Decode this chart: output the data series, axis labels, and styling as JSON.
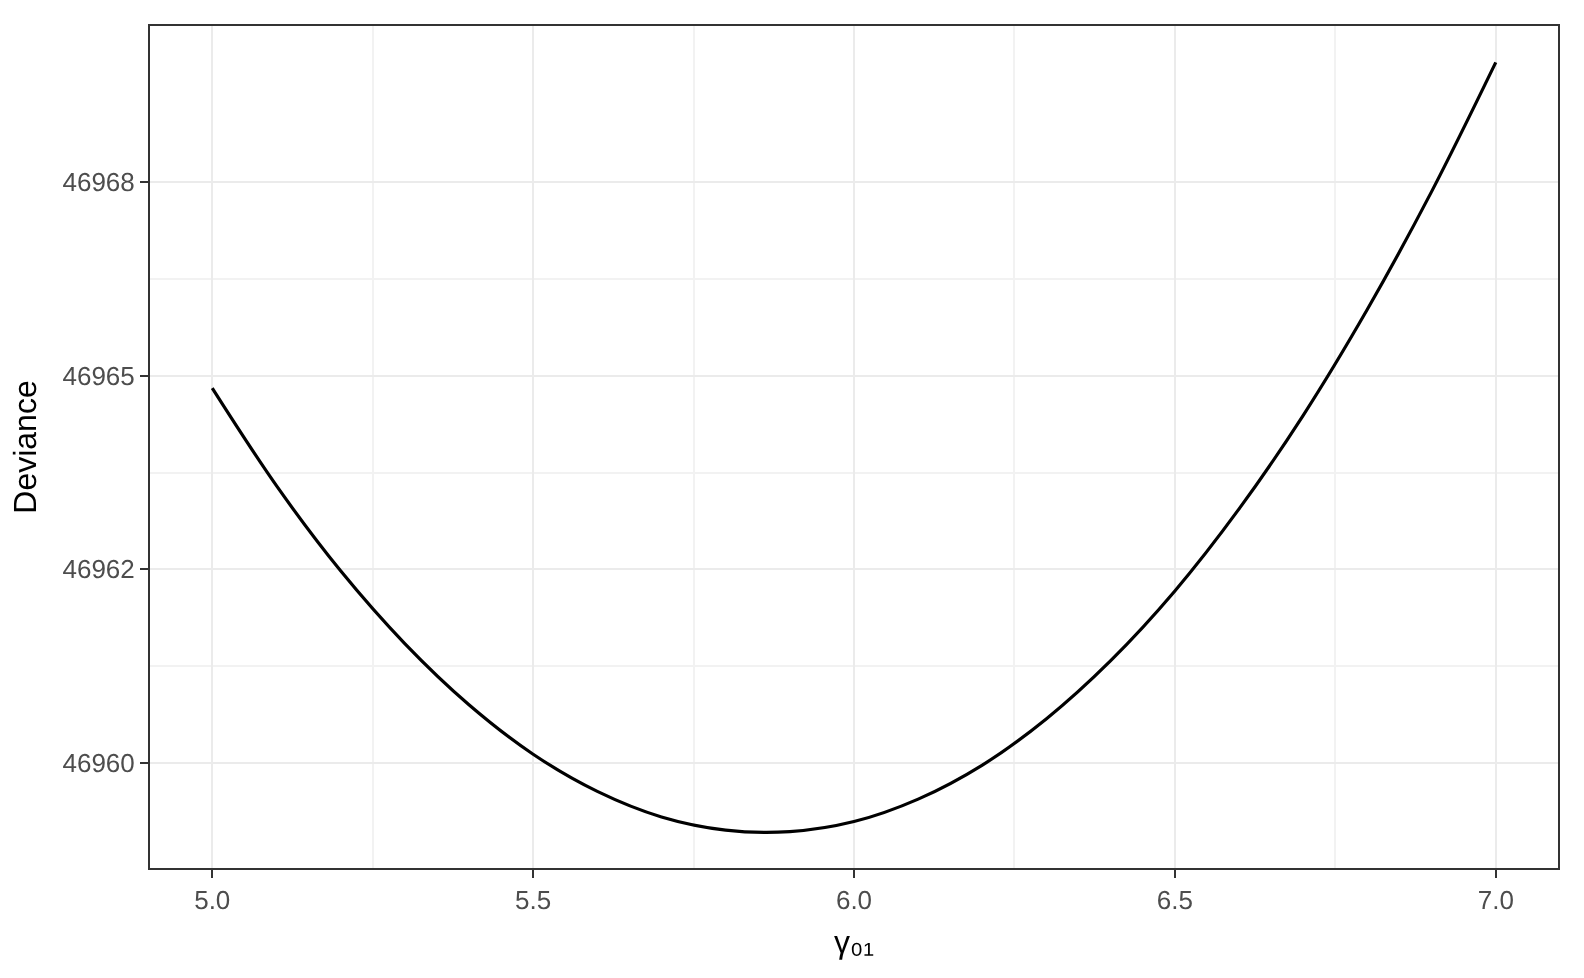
{
  "chart_data": {
    "type": "line",
    "xlabel": "γ₀₁",
    "ylabel": "Deviance",
    "x": [
      5.0,
      5.1,
      5.2,
      5.3,
      5.4,
      5.5,
      5.6,
      5.7,
      5.8,
      5.9,
      6.0,
      6.1,
      6.2,
      6.3,
      6.4,
      6.5,
      6.6,
      6.7,
      6.8,
      6.9,
      7.0
    ],
    "series": [
      {
        "color": "#000000",
        "values": [
          46964.84,
          46963.58,
          46962.48,
          46961.54,
          46960.75,
          46960.11,
          46959.63,
          46959.3,
          46959.13,
          46959.11,
          46959.24,
          46959.53,
          46959.97,
          46960.57,
          46961.32,
          46962.22,
          46963.28,
          46964.49,
          46965.86,
          46967.38,
          46969.05
        ]
      }
    ],
    "xlim": [
      4.903,
      7.097
    ],
    "xticks": [
      {
        "value": 5,
        "label": "5.0"
      },
      5.5,
      {
        "value": 6,
        "label": "6.0"
      },
      6.5,
      {
        "value": 7,
        "label": "7.0"
      }
    ],
    "ylim": [
      46958.64,
      46969.52
    ],
    "yticks": [
      46960,
      {
        "value": 46962.5,
        "label": "46962"
      },
      46965,
      {
        "value": 46967.5,
        "label": "46968"
      }
    ],
    "grid": true,
    "marker": "none",
    "line_style": "solid"
  }
}
